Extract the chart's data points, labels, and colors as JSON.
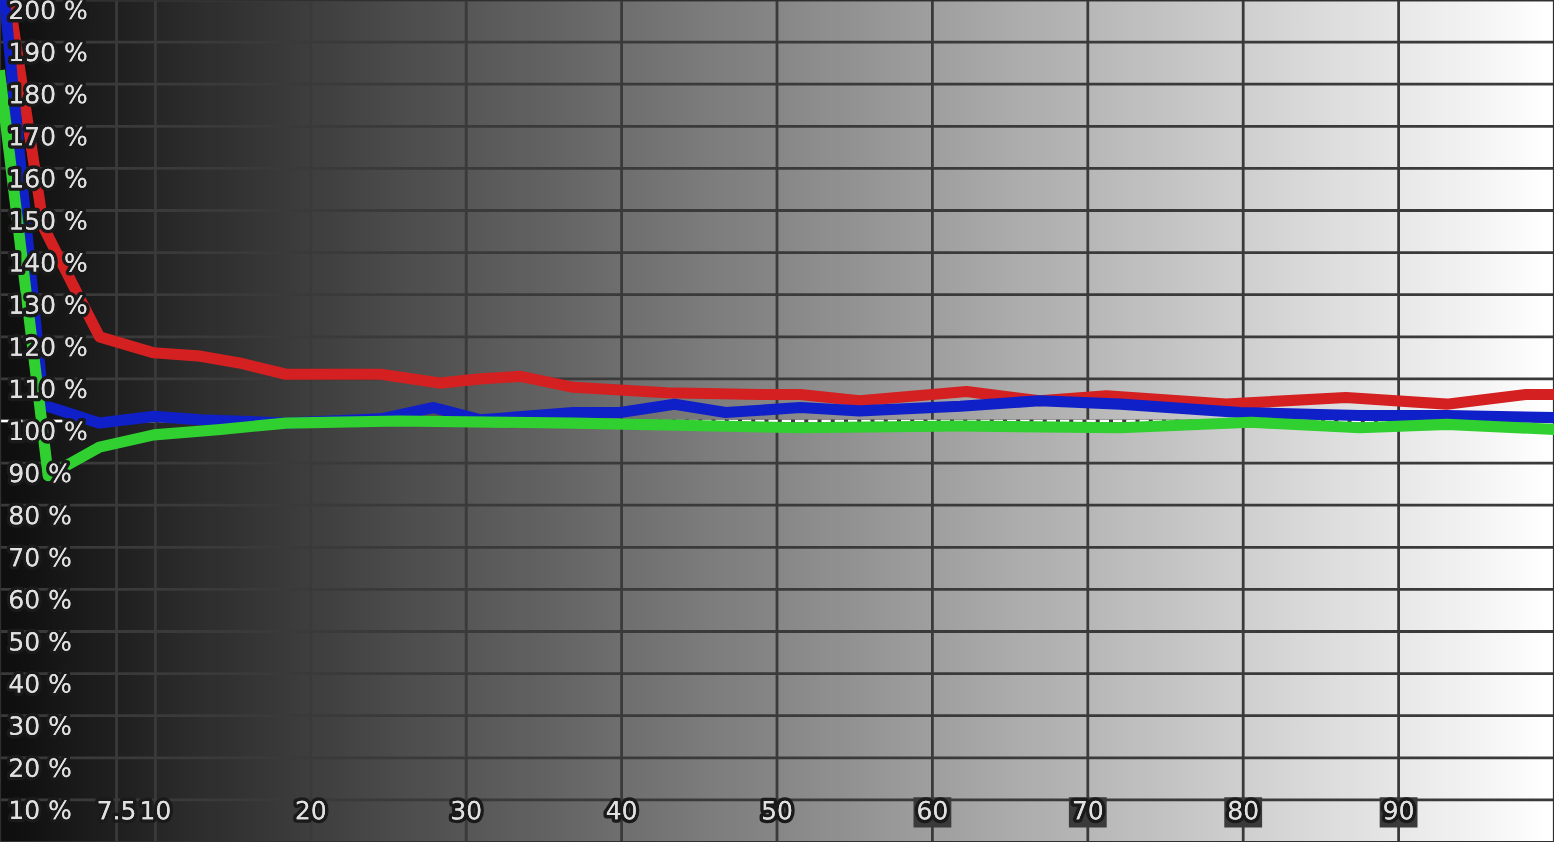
{
  "chart_data": {
    "type": "line",
    "xlim": [
      0,
      100
    ],
    "ylim": [
      0,
      200
    ],
    "xticks": [
      7.5,
      10,
      20,
      30,
      40,
      50,
      60,
      70,
      80,
      90
    ],
    "yticks": [
      {
        "value": 10,
        "label": "10 %"
      },
      {
        "value": 20,
        "label": "20 %"
      },
      {
        "value": 30,
        "label": "30 %"
      },
      {
        "value": 40,
        "label": "40 %"
      },
      {
        "value": 50,
        "label": "50 %"
      },
      {
        "value": 60,
        "label": "60 %"
      },
      {
        "value": 70,
        "label": "70 %"
      },
      {
        "value": 80,
        "label": "80 %"
      },
      {
        "value": 90,
        "label": "90 %"
      },
      {
        "value": 100,
        "label": "100 %"
      },
      {
        "value": 110,
        "label": "110 %"
      },
      {
        "value": 120,
        "label": "120 %"
      },
      {
        "value": 130,
        "label": "130 %"
      },
      {
        "value": 140,
        "label": "140 %"
      },
      {
        "value": 150,
        "label": "150 %"
      },
      {
        "value": 160,
        "label": "160 %"
      },
      {
        "value": 170,
        "label": "170 %"
      },
      {
        "value": 180,
        "label": "180 %"
      },
      {
        "value": 190,
        "label": "190 %"
      },
      {
        "value": 200,
        "label": "200 %"
      }
    ],
    "grid": true,
    "marker": "none",
    "line_style": "solid",
    "ref_lines": [
      {
        "axis": "y",
        "value": 100,
        "label": null,
        "color": "#ffffff",
        "line_style": "dashed"
      }
    ],
    "series": [
      {
        "color": "#d42020",
        "x": [
          0.6,
          2.8,
          6.4,
          9.9,
          12.9,
          15.4,
          18.4,
          24.5,
          28.3,
          30.9,
          33.5,
          36.9,
          42.9,
          48.9,
          51.5,
          55.3,
          62.2,
          66.9,
          71.2,
          78.9,
          86.6,
          93.1,
          98.2,
          100
        ],
        "values": [
          200,
          146,
          120,
          116.2,
          115.4,
          113.8,
          111.1,
          111.1,
          109,
          110,
          110.6,
          108,
          106.7,
          106.3,
          106.3,
          104.8,
          107,
          104.8,
          106,
          104,
          105.6,
          104,
          106.3,
          106.3
        ]
      },
      {
        "color": "#1020c8",
        "x": [
          0.3,
          2.8,
          6.4,
          9.9,
          12.9,
          18.4,
          24.5,
          27.9,
          30.9,
          36.9,
          39.9,
          43.4,
          46.7,
          51.5,
          55.3,
          61.8,
          66.9,
          72.1,
          79.8,
          87.5,
          93.1,
          100
        ],
        "values": [
          200,
          103.8,
          99.5,
          101.1,
          100.3,
          99.5,
          100.5,
          103.2,
          100.3,
          102,
          102,
          104,
          102,
          103.2,
          102.4,
          103.5,
          104.8,
          104,
          102,
          101.3,
          101.3,
          100.8
        ]
      },
      {
        "color": "#30d030",
        "x": [
          0,
          3.1,
          6.4,
          9.9,
          14.2,
          18.4,
          25.7,
          36.9,
          51.5,
          61.8,
          72.1,
          80.5,
          87.5,
          93.1,
          100
        ],
        "values": [
          182,
          87,
          93.8,
          96.7,
          98,
          99.5,
          100,
          99.5,
          98.4,
          98.8,
          98.4,
          99.7,
          98.4,
          99.2,
          98
        ]
      }
    ]
  }
}
